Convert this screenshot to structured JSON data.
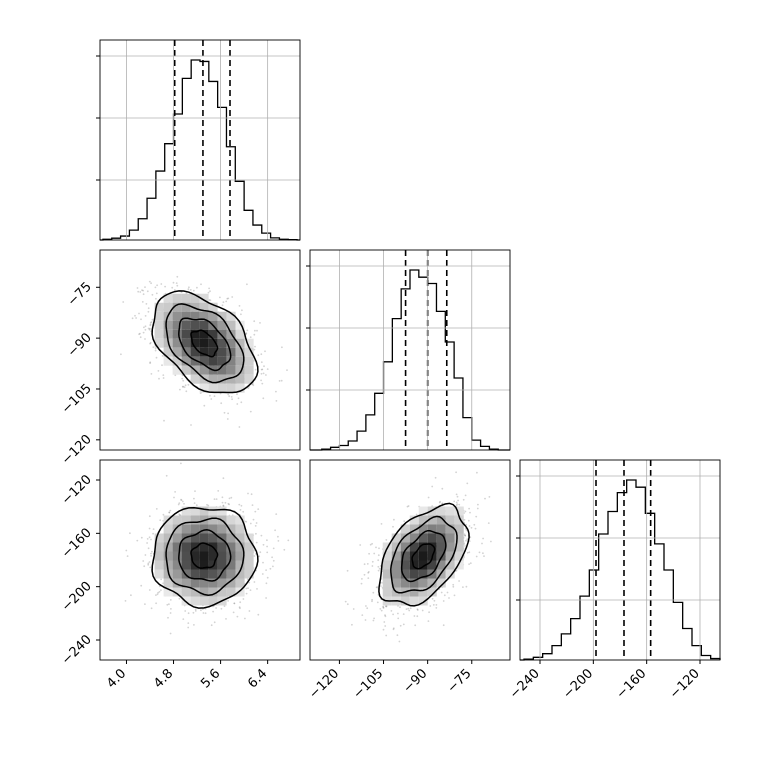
{
  "chart_data": {
    "type": "corner",
    "parameters": 3,
    "grid": true,
    "colors": {
      "line": "#000000",
      "grid": "#b0b0b0",
      "points": "#808080"
    },
    "panels": [
      {
        "id": "p0",
        "type": "histogram",
        "x_range": [
          3.55,
          6.95
        ],
        "dashed_quantiles": [
          4.82,
          5.3,
          5.76
        ],
        "bin_edges": [
          3.6,
          3.75,
          3.9,
          4.05,
          4.2,
          4.35,
          4.5,
          4.65,
          4.8,
          4.95,
          5.1,
          5.25,
          5.4,
          5.55,
          5.7,
          5.85,
          6.0,
          6.15,
          6.3,
          6.45,
          6.6,
          6.75,
          6.9
        ],
        "counts": [
          0.4,
          1.0,
          2.2,
          5.5,
          11.8,
          23.2,
          38.3,
          53.5,
          70.0,
          89.8,
          100.0,
          99.2,
          88.1,
          73.7,
          51.8,
          32.6,
          16.5,
          8.3,
          3.8,
          1.2,
          0.4,
          0.2
        ]
      },
      {
        "id": "p1",
        "type": "histogram",
        "x_range": [
          -130,
          -62
        ],
        "dashed_quantiles": [
          -97.5,
          -90.0,
          -83.5
        ],
        "bin_edges": [
          -126,
          -123,
          -120,
          -117,
          -114,
          -111,
          -108,
          -105,
          -102,
          -99,
          -96,
          -93,
          -90,
          -87,
          -84,
          -81,
          -78,
          -75,
          -72,
          -69,
          -66
        ],
        "counts": [
          0.5,
          1.5,
          2.5,
          5.0,
          10.5,
          19.5,
          31.5,
          49.0,
          73.0,
          89.5,
          100.0,
          96.0,
          92.5,
          77.0,
          60.0,
          40.0,
          18.0,
          5.5,
          2.0,
          0.5
        ]
      },
      {
        "id": "p2",
        "type": "histogram",
        "x_range": [
          -255,
          -105
        ],
        "dashed_quantiles": [
          -198,
          -177,
          -157
        ],
        "bin_edges": [
          -252,
          -245,
          -238,
          -231,
          -224,
          -217,
          -210,
          -203,
          -196,
          -189,
          -182,
          -175,
          -168,
          -161,
          -154,
          -147,
          -140,
          -133,
          -126,
          -119,
          -112,
          -105
        ],
        "counts": [
          0.5,
          1.5,
          3.5,
          8.0,
          14.5,
          23.0,
          35.5,
          50.0,
          70.0,
          82.5,
          93.0,
          100.0,
          96.0,
          81.5,
          64.5,
          50.0,
          32.0,
          17.5,
          8.0,
          2.5,
          0.8
        ]
      },
      {
        "id": "p10",
        "type": "2d-density",
        "x_range": [
          3.55,
          6.95
        ],
        "y_range": [
          -123,
          -64
        ],
        "center": [
          5.32,
          -91.5
        ],
        "std": [
          0.44,
          7.5
        ],
        "correlation": -0.45,
        "contour_levels": [
          0.5,
          1.0,
          1.5,
          2.0
        ]
      },
      {
        "id": "p20",
        "type": "2d-density",
        "x_range": [
          3.55,
          6.95
        ],
        "y_range": [
          -255,
          -105
        ],
        "center": [
          5.32,
          -177
        ],
        "std": [
          0.44,
          18.5
        ],
        "correlation": 0.0,
        "contour_levels": [
          0.5,
          1.0,
          1.5,
          2.0
        ]
      },
      {
        "id": "p21",
        "type": "2d-density",
        "x_range": [
          -130,
          -62
        ],
        "y_range": [
          -255,
          -105
        ],
        "center": [
          -91.5,
          -177
        ],
        "std": [
          7.5,
          18.5
        ],
        "correlation": 0.45,
        "contour_levels": [
          0.5,
          1.0,
          1.5,
          2.0
        ]
      }
    ],
    "axes": {
      "col0_x_ticks": [
        "4.0",
        "4.8",
        "5.6",
        "6.4"
      ],
      "col1_x_ticks": [
        "−120",
        "−105",
        "−90",
        "−75"
      ],
      "col2_x_ticks": [
        "−240",
        "−200",
        "−160",
        "−120"
      ],
      "row1_y_ticks": [
        "−75",
        "−90",
        "−105",
        "−120"
      ],
      "row2_y_ticks": [
        "−120",
        "−160",
        "−200",
        "−240"
      ]
    }
  }
}
